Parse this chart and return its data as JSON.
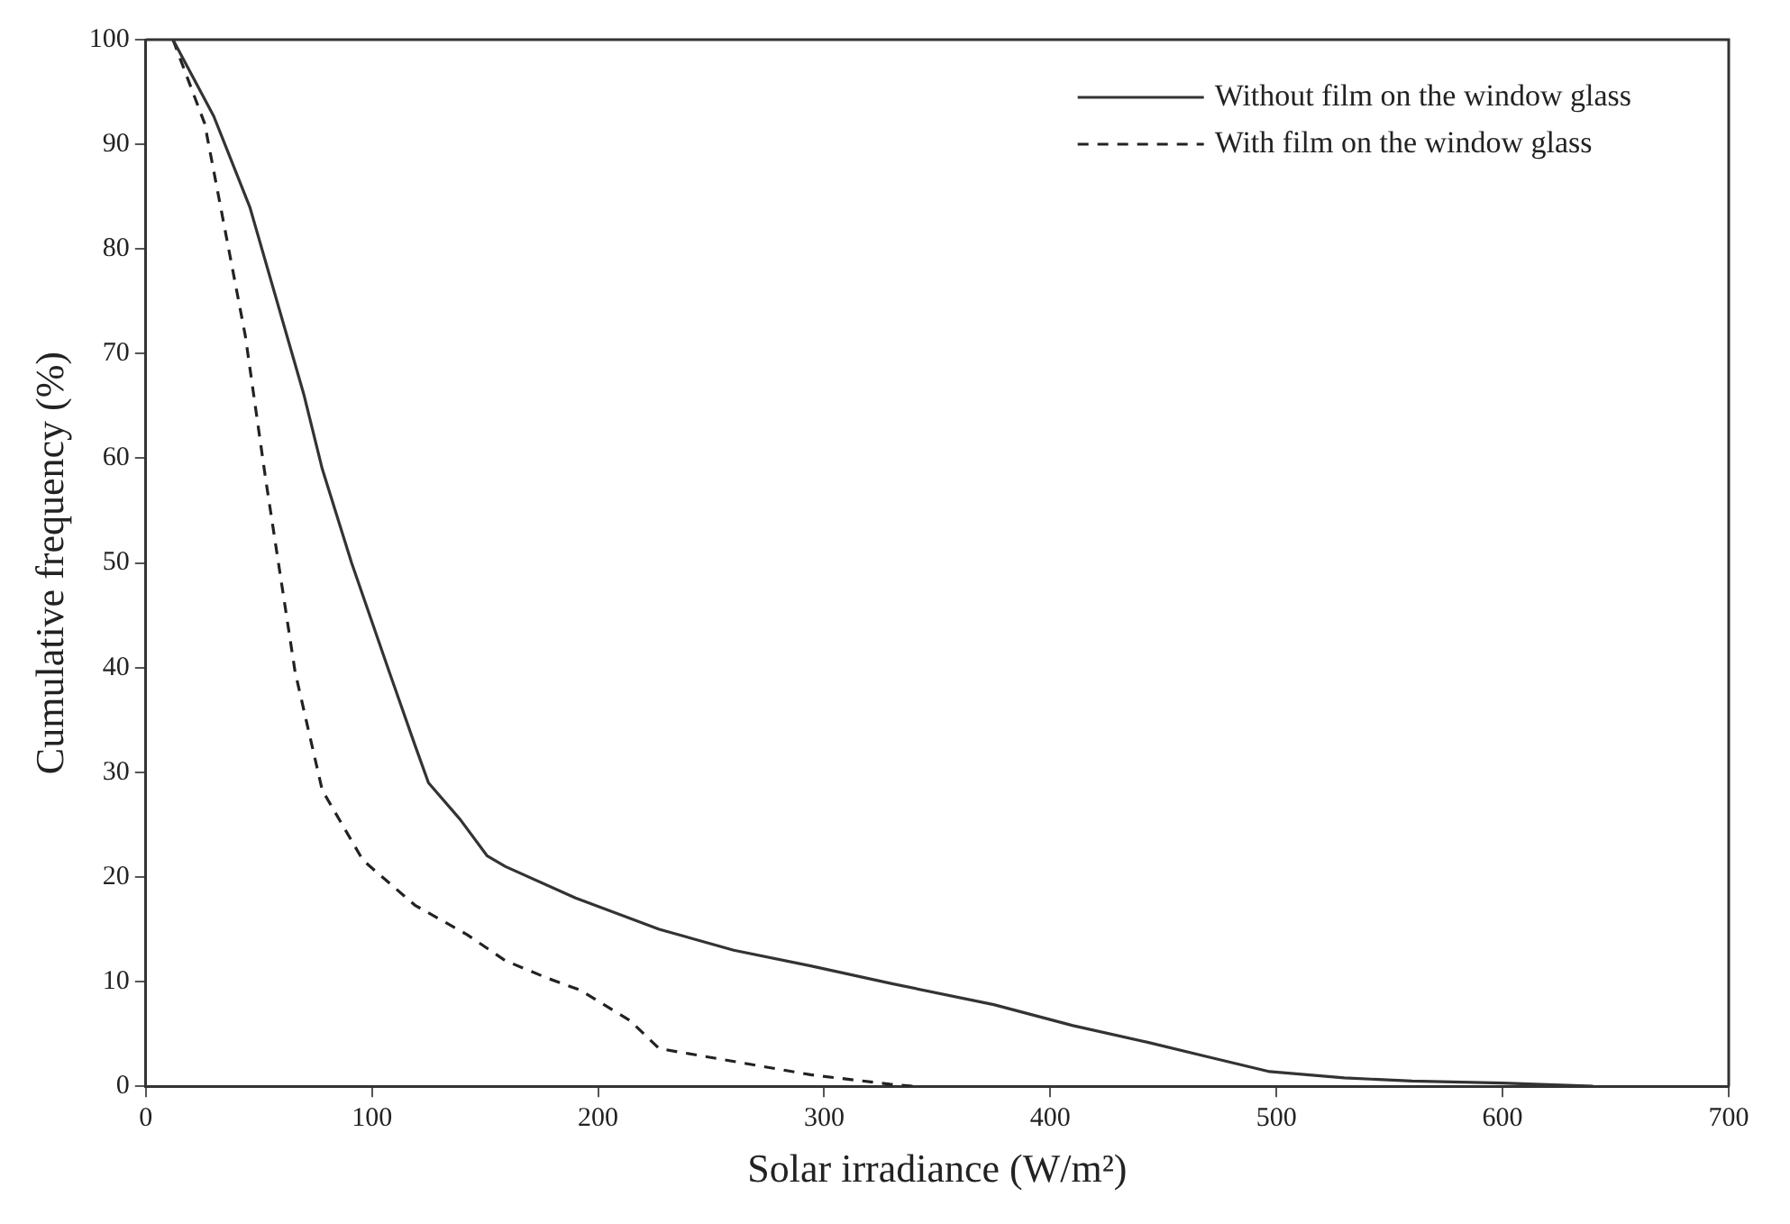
{
  "chart_data": {
    "type": "line",
    "xlabel": "Solar irradiance (W/m²)",
    "ylabel": "Cumulative frequency (%)",
    "xlim": [
      0,
      700
    ],
    "xticks": [
      0,
      100,
      200,
      300,
      400,
      500,
      600,
      700
    ],
    "ylim": [
      0,
      100
    ],
    "yticks": [
      0,
      10,
      20,
      30,
      40,
      50,
      60,
      70,
      80,
      90,
      100
    ],
    "grid": false,
    "legend": "top right",
    "marker": "none",
    "series": [
      {
        "name": "Without film on the window glass",
        "color": "#333333",
        "line_style": "solid",
        "x": [
          12,
          30,
          46,
          70,
          78,
          91,
          107,
          119,
          125,
          139,
          151,
          159,
          190,
          227,
          260,
          294,
          330,
          375,
          410,
          443,
          470,
          497,
          530,
          560,
          600,
          640
        ],
        "values": [
          100,
          92.7,
          84,
          66,
          59,
          50,
          40,
          32.6,
          29,
          25.5,
          22,
          21,
          18,
          15,
          13,
          11.5,
          9.8,
          7.8,
          5.8,
          4.2,
          2.8,
          1.4,
          0.8,
          0.5,
          0.3,
          0
        ]
      },
      {
        "name": "With film on the window glass",
        "color": "#222222",
        "line_style": "dashed",
        "x": [
          12,
          26,
          44,
          53,
          66,
          78,
          96,
          119,
          142,
          159,
          178,
          192,
          214,
          227,
          254,
          294,
          329,
          340
        ],
        "values": [
          100,
          92,
          71.7,
          58,
          39.6,
          28.3,
          21.6,
          17.3,
          14.5,
          12,
          10.3,
          9.2,
          6.3,
          3.6,
          2.6,
          1.1,
          0.2,
          0
        ]
      }
    ]
  }
}
